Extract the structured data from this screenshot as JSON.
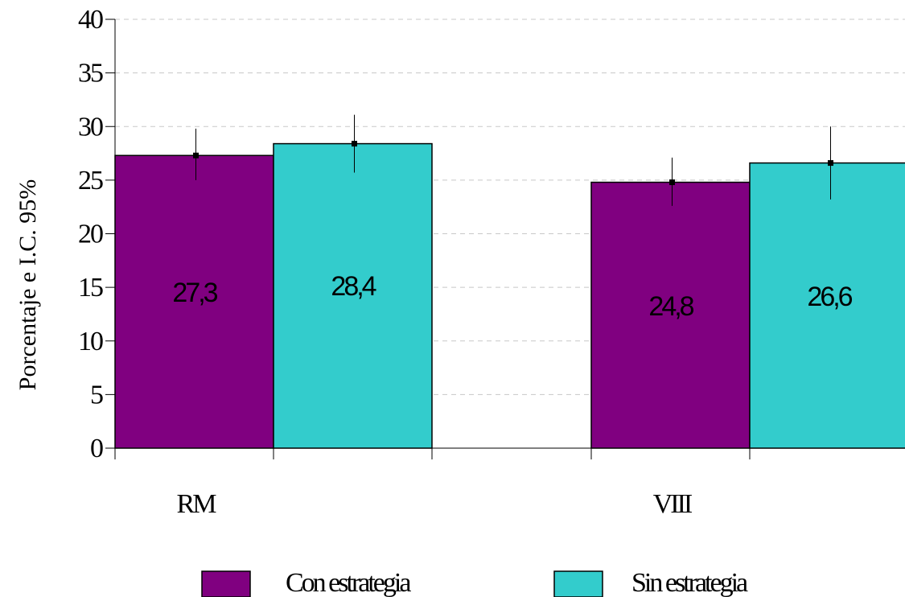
{
  "chart_data": {
    "type": "bar",
    "title": "",
    "xlabel": "",
    "ylabel": "Porcentaje e I.C. 95%",
    "categories": [
      "RM",
      "VIII"
    ],
    "series": [
      {
        "name": "Con estrategia",
        "color": "#800080",
        "values": [
          27.3,
          24.8
        ],
        "labels": [
          "27,3",
          "24,8"
        ],
        "ci_low": [
          25.0,
          22.6
        ],
        "ci_high": [
          29.8,
          27.1
        ]
      },
      {
        "name": "Sin estrategia",
        "color": "#33CCCC",
        "values": [
          28.4,
          26.6
        ],
        "labels": [
          "28,4",
          "26,6"
        ],
        "ci_low": [
          25.7,
          23.2
        ],
        "ci_high": [
          31.1,
          30.0
        ]
      }
    ],
    "ylim": [
      0,
      40
    ],
    "yticks": [
      0,
      5,
      10,
      15,
      20,
      25,
      30,
      35,
      40
    ],
    "grid": true,
    "legend_position": "bottom"
  }
}
